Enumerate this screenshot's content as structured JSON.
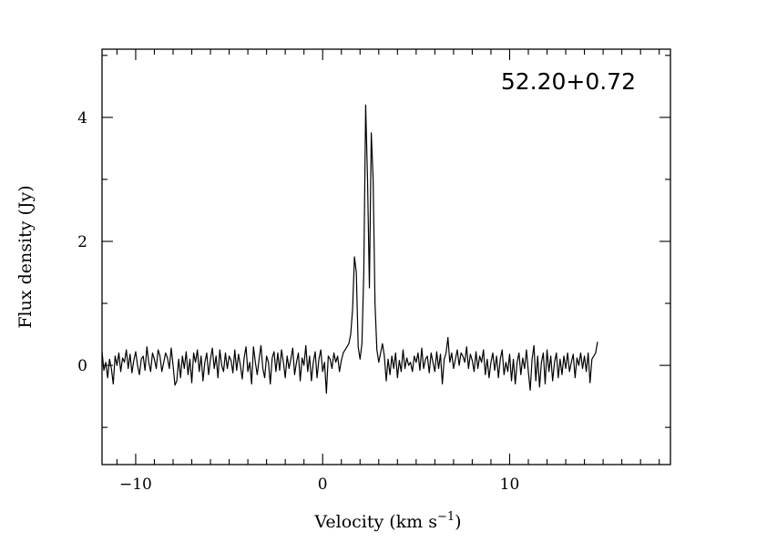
{
  "chart_data": {
    "type": "line",
    "title": "",
    "annotation": "52.20+0.72",
    "xlabel": "Velocity (km s",
    "xlabel_sup": "−1",
    "xlabel_tail": ")",
    "ylabel": "Flux density (Jy)",
    "xlim": [
      -11.8,
      18.6
    ],
    "ylim": [
      -1.6,
      5.1
    ],
    "x_major_ticks": [
      -10,
      0,
      10
    ],
    "x_major_tick_labels": [
      "−10",
      "0",
      "10"
    ],
    "x_minor_ticks": [
      -11,
      -9,
      -8,
      -7,
      -6,
      -5,
      -4,
      -3,
      -2,
      -1,
      1,
      2,
      3,
      4,
      5,
      6,
      7,
      8,
      9,
      11,
      12,
      13,
      14,
      15,
      16,
      17,
      18
    ],
    "y_major_ticks": [
      0,
      2,
      4
    ],
    "y_major_tick_labels": [
      "0",
      "2",
      "4"
    ],
    "y_minor_ticks": [
      -1,
      1,
      3,
      5
    ],
    "grid": false,
    "legend": "none",
    "line_color": "#000000",
    "x_start": -11.8,
    "x_step": 0.1,
    "series": [
      {
        "values": [
          0.22,
          -0.08,
          0.05,
          -0.2,
          0.1,
          -0.05,
          -0.3,
          0.15,
          0.0,
          0.2,
          -0.1,
          0.12,
          0.05,
          0.25,
          -0.05,
          0.18,
          -0.12,
          0.08,
          0.22,
          0.0,
          -0.15,
          0.1,
          0.15,
          -0.08,
          0.3,
          0.05,
          -0.1,
          0.2,
          0.1,
          -0.05,
          0.25,
          0.15,
          -0.1,
          0.05,
          0.2,
          0.12,
          -0.05,
          0.28,
          0.0,
          -0.32,
          -0.25,
          0.1,
          -0.2,
          0.15,
          -0.05,
          0.22,
          -0.15,
          0.1,
          -0.28,
          0.2,
          0.05,
          0.25,
          -0.1,
          0.15,
          -0.25,
          0.05,
          0.2,
          -0.15,
          0.1,
          0.28,
          -0.05,
          0.15,
          -0.2,
          0.25,
          0.0,
          -0.1,
          0.2,
          -0.05,
          0.15,
          0.08,
          -0.12,
          0.25,
          -0.08,
          0.18,
          0.0,
          -0.22,
          0.12,
          0.3,
          -0.1,
          0.05,
          -0.3,
          0.3,
          0.05,
          -0.15,
          0.1,
          0.32,
          -0.05,
          -0.2,
          0.15,
          0.05,
          -0.3,
          0.12,
          0.22,
          -0.1,
          0.2,
          -0.08,
          0.25,
          0.05,
          -0.2,
          0.15,
          -0.05,
          0.1,
          0.28,
          -0.15,
          0.05,
          0.2,
          -0.25,
          0.12,
          0.0,
          0.32,
          -0.1,
          0.15,
          -0.25,
          0.05,
          0.22,
          -0.2,
          0.1,
          0.25,
          -0.1,
          0.05,
          -0.45,
          0.15,
          0.1,
          -0.05,
          0.2,
          0.05,
          0.15,
          -0.1,
          0.08,
          0.2,
          0.25,
          0.3,
          0.35,
          0.5,
          0.9,
          1.75,
          1.5,
          0.3,
          0.1,
          0.35,
          1.5,
          4.2,
          3.0,
          1.25,
          3.75,
          3.0,
          1.0,
          0.25,
          0.05,
          0.2,
          0.35,
          0.15,
          -0.25,
          0.1,
          -0.15,
          0.15,
          -0.05,
          0.2,
          -0.2,
          0.08,
          -0.1,
          0.25,
          -0.05,
          0.12,
          0.0,
          0.05,
          -0.1,
          0.15,
          0.05,
          0.2,
          -0.08,
          0.28,
          -0.05,
          0.1,
          0.15,
          -0.12,
          0.2,
          0.05,
          -0.1,
          0.22,
          -0.05,
          0.18,
          -0.3,
          0.1,
          0.2,
          0.45,
          0.05,
          0.2,
          -0.05,
          0.1,
          0.25,
          0.0,
          0.2,
          0.15,
          0.05,
          0.3,
          -0.05,
          0.18,
          0.08,
          -0.1,
          0.22,
          -0.05,
          0.15,
          0.05,
          0.25,
          -0.15,
          0.1,
          -0.2,
          0.05,
          0.2,
          -0.08,
          0.15,
          -0.2,
          0.1,
          0.25,
          -0.15,
          0.05,
          -0.1,
          0.18,
          -0.25,
          0.1,
          -0.3,
          0.05,
          0.2,
          -0.15,
          0.12,
          -0.05,
          0.25,
          -0.1,
          -0.4,
          0.1,
          0.32,
          -0.25,
          0.15,
          -0.35,
          0.05,
          0.2,
          -0.3,
          0.25,
          -0.1,
          0.15,
          -0.25,
          0.05,
          0.2,
          -0.2,
          0.1,
          -0.15,
          0.15,
          -0.05,
          0.2,
          -0.1,
          0.05,
          0.18,
          -0.2,
          0.12,
          0.0,
          0.2,
          -0.05,
          0.15,
          -0.1,
          0.2,
          -0.28,
          0.1,
          0.15,
          0.2,
          0.38
        ]
      }
    ]
  }
}
